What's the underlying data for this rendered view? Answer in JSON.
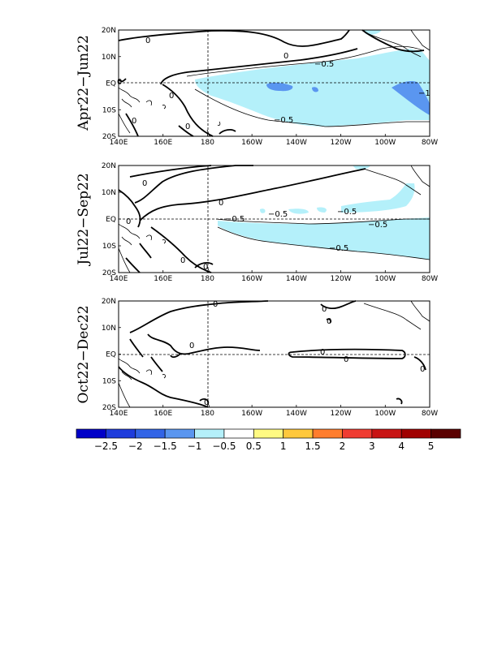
{
  "panels": [
    {
      "label": "Apr22−Jun22",
      "contour_labels": [
        "−0.5",
        "−0.5",
        "−1",
        "0",
        "0",
        "0",
        "0",
        "0",
        "0"
      ]
    },
    {
      "label": "Jul22−Sep22",
      "contour_labels": [
        "−0.5",
        "−0.5",
        "−0.5",
        "−0.5",
        "−0.5",
        "0",
        "0",
        "0",
        "0",
        "0"
      ]
    },
    {
      "label": "Oct22−Dec22",
      "contour_labels": [
        "0",
        "0",
        "0",
        "0",
        "0",
        "0",
        "0",
        "0"
      ]
    }
  ],
  "x_ticks": [
    "140E",
    "160E",
    "180",
    "160W",
    "140W",
    "120W",
    "100W",
    "80W"
  ],
  "y_ticks": [
    "20N",
    "10N",
    "EQ",
    "10S",
    "20S"
  ],
  "colorbar": {
    "labels": [
      "−2.5",
      "−2",
      "−1.5",
      "−1",
      "−0.5",
      "0.5",
      "1",
      "1.5",
      "2",
      "3",
      "4",
      "5"
    ],
    "colors": [
      "#0000c8",
      "#1e3cdc",
      "#3264e6",
      "#5a96f0",
      "#b4f0fa",
      "#ffffff",
      "#fffa82",
      "#ffc83c",
      "#ff7d2d",
      "#f03c32",
      "#c81414",
      "#a00000",
      "#5a0000"
    ]
  },
  "shading": {
    "minus_half": "#b4f0fa",
    "minus_one": "#5a96f0"
  }
}
